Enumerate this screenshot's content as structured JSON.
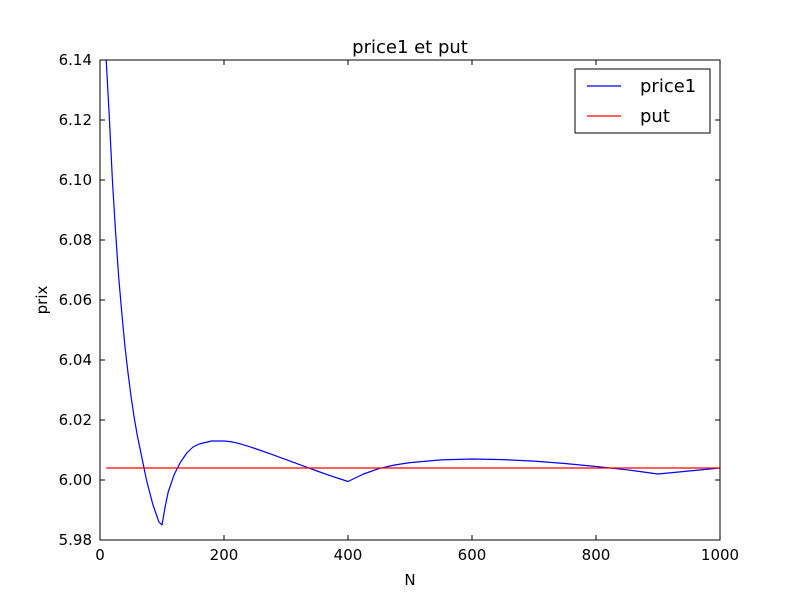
{
  "chart_data": {
    "type": "line",
    "title": "price1 et put",
    "xlabel": "N",
    "ylabel": "prix",
    "xlim": [
      0,
      1000
    ],
    "ylim": [
      5.98,
      6.14
    ],
    "xticks": [
      0,
      200,
      400,
      600,
      800,
      1000
    ],
    "yticks": [
      5.98,
      6.0,
      6.02,
      6.04,
      6.06,
      6.08,
      6.1,
      6.12,
      6.14
    ],
    "ytick_labels": [
      "5.98",
      "6.00",
      "6.02",
      "6.04",
      "6.06",
      "6.08",
      "6.10",
      "6.12",
      "6.14"
    ],
    "grid": false,
    "legend_position": "top-right",
    "series": [
      {
        "name": "price1",
        "color": "#0000ff",
        "x": [
          10,
          15,
          20,
          25,
          30,
          35,
          40,
          45,
          50,
          55,
          60,
          65,
          70,
          75,
          80,
          85,
          90,
          95,
          100,
          105,
          110,
          120,
          130,
          140,
          150,
          160,
          170,
          180,
          190,
          200,
          210,
          220,
          230,
          240,
          250,
          275,
          300,
          325,
          350,
          375,
          400,
          425,
          450,
          475,
          500,
          550,
          600,
          650,
          700,
          750,
          800,
          850,
          900,
          950,
          1000
        ],
        "y": [
          6.14,
          6.121,
          6.1,
          6.083,
          6.068,
          6.056,
          6.045,
          6.036,
          6.028,
          6.021,
          6.015,
          6.01,
          6.005,
          6.0,
          5.996,
          5.992,
          5.989,
          5.986,
          5.985,
          5.991,
          5.996,
          6.002,
          6.006,
          6.009,
          6.011,
          6.012,
          6.0125,
          6.013,
          6.013,
          6.013,
          6.0128,
          6.0124,
          6.0118,
          6.0112,
          6.0105,
          6.0087,
          6.0068,
          6.0049,
          6.003,
          6.0012,
          5.9995,
          6.002,
          6.0038,
          6.005,
          6.0058,
          6.0067,
          6.007,
          6.0068,
          6.0063,
          6.0055,
          6.0045,
          6.0034,
          6.002,
          6.003,
          6.004
        ]
      },
      {
        "name": "put",
        "color": "#ff0000",
        "x": [
          10,
          1000
        ],
        "y": [
          6.004,
          6.004
        ]
      }
    ]
  }
}
